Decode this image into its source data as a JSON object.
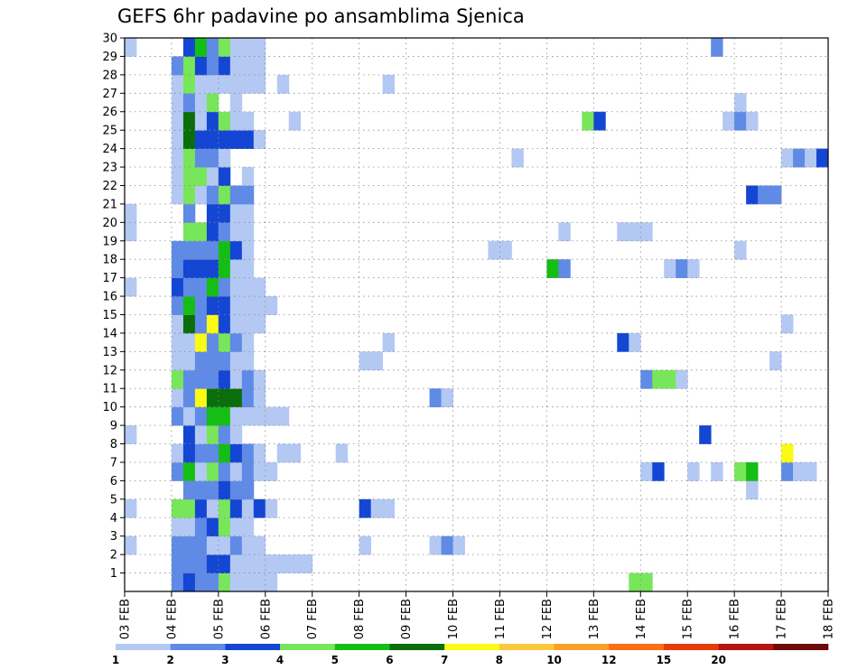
{
  "chart_data": {
    "type": "heatmap",
    "title": "GEFS 6hr padavine po ansamblima Sjenica",
    "xlabel": "",
    "ylabel": "",
    "x_tick_labels": [
      "03 FEB",
      "04 FEB",
      "05 FEB",
      "06 FEB",
      "07 FEB",
      "08 FEB",
      "09 FEB",
      "10 FEB",
      "11 FEB",
      "12 FEB",
      "13 FEB",
      "14 FEB",
      "15 FEB",
      "16 FEB",
      "17 FEB",
      "18 FEB"
    ],
    "y_tick_labels": [
      "1",
      "2",
      "3",
      "4",
      "5",
      "6",
      "7",
      "8",
      "9",
      "10",
      "11",
      "12",
      "13",
      "14",
      "15",
      "16",
      "17",
      "18",
      "19",
      "20",
      "21",
      "22",
      "23",
      "24",
      "25",
      "26",
      "27",
      "28",
      "29",
      "30"
    ],
    "steps_per_day": 4,
    "n_steps": 60,
    "n_members": 30,
    "grid": true,
    "color_levels": [
      {
        "label": "1",
        "color": "#b4c8f4"
      },
      {
        "label": "2",
        "color": "#5f8ae6"
      },
      {
        "label": "3",
        "color": "#1446d4"
      },
      {
        "label": "4",
        "color": "#78e65a"
      },
      {
        "label": "5",
        "color": "#14be14"
      },
      {
        "label": "6",
        "color": "#0a6e0a"
      },
      {
        "label": "7",
        "color": "#fafa14"
      },
      {
        "label": "8",
        "color": "#fac83c"
      },
      {
        "label": "10",
        "color": "#faa028"
      },
      {
        "label": "12",
        "color": "#fa6e14"
      },
      {
        "label": "15",
        "color": "#e63c0a"
      },
      {
        "label": "20",
        "color": "#b41414"
      },
      {
        "label": "",
        "color": "#6e0a0a"
      }
    ],
    "members": {
      "1": [
        [
          4,
          2
        ],
        [
          5,
          3
        ],
        [
          6,
          2
        ],
        [
          7,
          2
        ],
        [
          8,
          4
        ],
        [
          9,
          1
        ],
        [
          10,
          1
        ],
        [
          11,
          1
        ],
        [
          12,
          1
        ],
        [
          43,
          4
        ],
        [
          44,
          4
        ]
      ],
      "2": [
        [
          4,
          2
        ],
        [
          5,
          2
        ],
        [
          6,
          2
        ],
        [
          7,
          3
        ],
        [
          8,
          3
        ],
        [
          9,
          1
        ],
        [
          10,
          1
        ],
        [
          11,
          1
        ],
        [
          12,
          1
        ],
        [
          13,
          1
        ],
        [
          14,
          1
        ],
        [
          15,
          1
        ]
      ],
      "3": [
        [
          0,
          1
        ],
        [
          4,
          2
        ],
        [
          5,
          2
        ],
        [
          6,
          2
        ],
        [
          7,
          1
        ],
        [
          8,
          1
        ],
        [
          9,
          2
        ],
        [
          10,
          1
        ],
        [
          11,
          1
        ],
        [
          20,
          1
        ],
        [
          26,
          1
        ],
        [
          27,
          2
        ],
        [
          28,
          1
        ]
      ],
      "4": [
        [
          4,
          1
        ],
        [
          5,
          1
        ],
        [
          6,
          2
        ],
        [
          7,
          3
        ],
        [
          8,
          4
        ],
        [
          9,
          1
        ],
        [
          10,
          1
        ]
      ],
      "5": [
        [
          0,
          1
        ],
        [
          4,
          4
        ],
        [
          5,
          4
        ],
        [
          6,
          3
        ],
        [
          7,
          1
        ],
        [
          8,
          4
        ],
        [
          9,
          3
        ],
        [
          10,
          1
        ],
        [
          11,
          3
        ],
        [
          12,
          1
        ],
        [
          20,
          3
        ],
        [
          21,
          1
        ],
        [
          22,
          1
        ]
      ],
      "6": [
        [
          5,
          2
        ],
        [
          6,
          2
        ],
        [
          7,
          2
        ],
        [
          8,
          3
        ],
        [
          9,
          2
        ],
        [
          10,
          2
        ],
        [
          53,
          1
        ]
      ],
      "7": [
        [
          4,
          2
        ],
        [
          5,
          5
        ],
        [
          6,
          1
        ],
        [
          7,
          4
        ],
        [
          8,
          2
        ],
        [
          9,
          1
        ],
        [
          10,
          2
        ],
        [
          11,
          1
        ],
        [
          12,
          1
        ],
        [
          44,
          1
        ],
        [
          45,
          3
        ],
        [
          48,
          1
        ],
        [
          50,
          1
        ],
        [
          52,
          4
        ],
        [
          53,
          5
        ],
        [
          56,
          2
        ],
        [
          57,
          1
        ],
        [
          58,
          1
        ]
      ],
      "8": [
        [
          4,
          1
        ],
        [
          5,
          3
        ],
        [
          6,
          2
        ],
        [
          7,
          2
        ],
        [
          8,
          5
        ],
        [
          9,
          3
        ],
        [
          10,
          2
        ],
        [
          11,
          1
        ],
        [
          13,
          1
        ],
        [
          14,
          1
        ],
        [
          18,
          1
        ],
        [
          56,
          7
        ]
      ],
      "9": [
        [
          0,
          1
        ],
        [
          5,
          3
        ],
        [
          6,
          1
        ],
        [
          7,
          4
        ],
        [
          8,
          2
        ],
        [
          9,
          1
        ],
        [
          49,
          3
        ]
      ],
      "10": [
        [
          4,
          2
        ],
        [
          5,
          1
        ],
        [
          6,
          2
        ],
        [
          7,
          5
        ],
        [
          8,
          5
        ],
        [
          9,
          1
        ],
        [
          10,
          1
        ],
        [
          11,
          1
        ],
        [
          12,
          1
        ],
        [
          13,
          1
        ]
      ],
      "11": [
        [
          4,
          1
        ],
        [
          5,
          2
        ],
        [
          6,
          7
        ],
        [
          7,
          6
        ],
        [
          8,
          6
        ],
        [
          9,
          6
        ],
        [
          10,
          2
        ],
        [
          11,
          1
        ],
        [
          26,
          2
        ],
        [
          27,
          1
        ]
      ],
      "12": [
        [
          4,
          4
        ],
        [
          5,
          2
        ],
        [
          6,
          2
        ],
        [
          7,
          2
        ],
        [
          8,
          3
        ],
        [
          9,
          1
        ],
        [
          10,
          2
        ],
        [
          11,
          1
        ],
        [
          44,
          2
        ],
        [
          45,
          4
        ],
        [
          46,
          4
        ],
        [
          47,
          1
        ]
      ],
      "13": [
        [
          4,
          1
        ],
        [
          5,
          1
        ],
        [
          6,
          2
        ],
        [
          7,
          2
        ],
        [
          8,
          2
        ],
        [
          9,
          1
        ],
        [
          10,
          1
        ],
        [
          20,
          1
        ],
        [
          21,
          1
        ],
        [
          55,
          1
        ]
      ],
      "14": [
        [
          4,
          1
        ],
        [
          5,
          1
        ],
        [
          6,
          7
        ],
        [
          7,
          2
        ],
        [
          8,
          4
        ],
        [
          9,
          2
        ],
        [
          10,
          1
        ],
        [
          22,
          1
        ],
        [
          42,
          3
        ],
        [
          43,
          1
        ]
      ],
      "15": [
        [
          4,
          1
        ],
        [
          5,
          6
        ],
        [
          6,
          2
        ],
        [
          7,
          7
        ],
        [
          8,
          3
        ],
        [
          9,
          1
        ],
        [
          10,
          1
        ],
        [
          11,
          1
        ],
        [
          56,
          1
        ]
      ],
      "16": [
        [
          4,
          2
        ],
        [
          5,
          5
        ],
        [
          6,
          2
        ],
        [
          7,
          3
        ],
        [
          8,
          3
        ],
        [
          9,
          1
        ],
        [
          10,
          1
        ],
        [
          11,
          1
        ],
        [
          12,
          1
        ]
      ],
      "17": [
        [
          0,
          1
        ],
        [
          4,
          3
        ],
        [
          5,
          2
        ],
        [
          6,
          2
        ],
        [
          7,
          5
        ],
        [
          8,
          2
        ],
        [
          9,
          1
        ],
        [
          10,
          1
        ],
        [
          11,
          1
        ]
      ],
      "18": [
        [
          4,
          2
        ],
        [
          5,
          3
        ],
        [
          6,
          3
        ],
        [
          7,
          3
        ],
        [
          8,
          5
        ],
        [
          9,
          1
        ],
        [
          10,
          1
        ],
        [
          36,
          5
        ],
        [
          37,
          2
        ],
        [
          46,
          1
        ],
        [
          47,
          2
        ],
        [
          48,
          1
        ]
      ],
      "19": [
        [
          4,
          2
        ],
        [
          5,
          2
        ],
        [
          6,
          2
        ],
        [
          7,
          2
        ],
        [
          8,
          5
        ],
        [
          9,
          3
        ],
        [
          10,
          1
        ],
        [
          31,
          1
        ],
        [
          32,
          1
        ],
        [
          52,
          1
        ]
      ],
      "20": [
        [
          0,
          1
        ],
        [
          5,
          4
        ],
        [
          6,
          4
        ],
        [
          7,
          3
        ],
        [
          8,
          2
        ],
        [
          9,
          1
        ],
        [
          10,
          1
        ],
        [
          37,
          1
        ],
        [
          42,
          1
        ],
        [
          43,
          1
        ],
        [
          44,
          1
        ]
      ],
      "21": [
        [
          0,
          1
        ],
        [
          5,
          2
        ],
        [
          7,
          3
        ],
        [
          8,
          3
        ],
        [
          9,
          1
        ],
        [
          10,
          1
        ]
      ],
      "22": [
        [
          4,
          1
        ],
        [
          5,
          4
        ],
        [
          6,
          1
        ],
        [
          7,
          2
        ],
        [
          8,
          4
        ],
        [
          9,
          2
        ],
        [
          10,
          2
        ],
        [
          53,
          3
        ],
        [
          54,
          2
        ],
        [
          55,
          2
        ]
      ],
      "23": [
        [
          4,
          1
        ],
        [
          5,
          4
        ],
        [
          6,
          4
        ],
        [
          7,
          1
        ],
        [
          8,
          3
        ],
        [
          10,
          1
        ]
      ],
      "24": [
        [
          4,
          1
        ],
        [
          5,
          4
        ],
        [
          6,
          2
        ],
        [
          7,
          2
        ],
        [
          8,
          1
        ],
        [
          33,
          1
        ],
        [
          56,
          1
        ],
        [
          57,
          2
        ],
        [
          58,
          1
        ],
        [
          59,
          3
        ]
      ],
      "25": [
        [
          4,
          1
        ],
        [
          5,
          6
        ],
        [
          6,
          3
        ],
        [
          7,
          3
        ],
        [
          8,
          3
        ],
        [
          9,
          3
        ],
        [
          10,
          3
        ],
        [
          11,
          1
        ]
      ],
      "26": [
        [
          4,
          1
        ],
        [
          5,
          6
        ],
        [
          6,
          1
        ],
        [
          7,
          3
        ],
        [
          8,
          4
        ],
        [
          9,
          1
        ],
        [
          10,
          1
        ],
        [
          14,
          1
        ],
        [
          39,
          4
        ],
        [
          40,
          3
        ],
        [
          51,
          1
        ],
        [
          52,
          2
        ],
        [
          53,
          1
        ]
      ],
      "27": [
        [
          4,
          1
        ],
        [
          5,
          2
        ],
        [
          6,
          1
        ],
        [
          7,
          4
        ],
        [
          9,
          1
        ],
        [
          52,
          1
        ]
      ],
      "28": [
        [
          4,
          1
        ],
        [
          5,
          4
        ],
        [
          6,
          1
        ],
        [
          7,
          1
        ],
        [
          8,
          1
        ],
        [
          9,
          1
        ],
        [
          10,
          1
        ],
        [
          11,
          1
        ],
        [
          13,
          1
        ],
        [
          22,
          1
        ]
      ],
      "29": [
        [
          4,
          2
        ],
        [
          5,
          4
        ],
        [
          6,
          3
        ],
        [
          7,
          2
        ],
        [
          8,
          3
        ],
        [
          9,
          1
        ],
        [
          10,
          1
        ],
        [
          11,
          1
        ]
      ],
      "30": [
        [
          0,
          1
        ],
        [
          5,
          3
        ],
        [
          6,
          5
        ],
        [
          7,
          2
        ],
        [
          8,
          4
        ],
        [
          9,
          1
        ],
        [
          10,
          1
        ],
        [
          11,
          1
        ],
        [
          50,
          2
        ]
      ]
    }
  }
}
